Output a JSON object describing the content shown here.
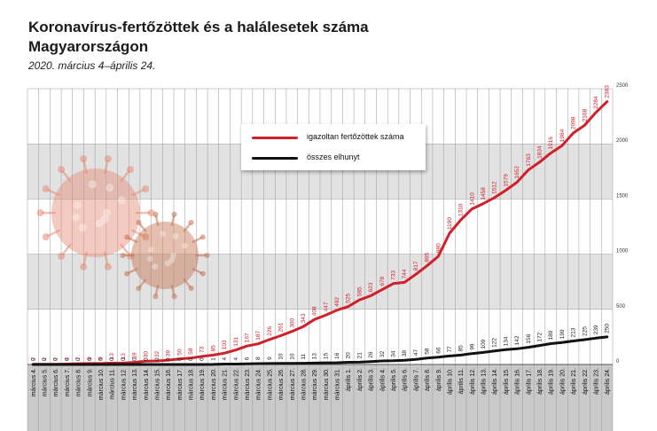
{
  "header": {
    "title_line1": "Koronavírus-fertőzöttek és a halálesetek száma",
    "title_line2": "Magyarországon",
    "subtitle": "2020. március 4–április 24."
  },
  "legend": {
    "infected_label": "igazoltan fertőzöttek száma",
    "deaths_label": "összes elhunyt"
  },
  "chart_data": {
    "type": "line",
    "title": "Koronavírus-fertőzöttek és a halálesetek száma Magyarországon",
    "subtitle": "2020. március 4–április 24.",
    "ylim": [
      0,
      2500
    ],
    "yticks": [
      0,
      500,
      1000,
      1500,
      2000,
      2500
    ],
    "grid": true,
    "legend_position": "top-center",
    "categories": [
      "március 4.",
      "március 5.",
      "március 6.",
      "március 7.",
      "március 8.",
      "március 9.",
      "március 10.",
      "március 11.",
      "március 12.",
      "március 13.",
      "március 14.",
      "március 15.",
      "március 16.",
      "március 17.",
      "március 18.",
      "március 19.",
      "március 20.",
      "március 21.",
      "március 22.",
      "március 23.",
      "március 24.",
      "március 25.",
      "március 26.",
      "március 27.",
      "március 28.",
      "március 29.",
      "március 30.",
      "március 31.",
      "április 1.",
      "április 2.",
      "április 3.",
      "április 4.",
      "április 5.",
      "április 6.",
      "április 7.",
      "április 8.",
      "április 9.",
      "április 10.",
      "április 11.",
      "április 12.",
      "április 13.",
      "április 14.",
      "április 15.",
      "április 16.",
      "április 17.",
      "április 18.",
      "április 19.",
      "április 20.",
      "április 21.",
      "április 22.",
      "április 23.",
      "április 24."
    ],
    "series": [
      {
        "name": "igazoltan fertőzöttek száma",
        "color": "#d0202a",
        "values": [
          2,
          2,
          2,
          4,
          7,
          9,
          9,
          13,
          13,
          19,
          30,
          32,
          39,
          50,
          58,
          73,
          85,
          103,
          131,
          167,
          187,
          226,
          261,
          300,
          343,
          408,
          447,
          492,
          525,
          585,
          623,
          678,
          733,
          744,
          817,
          895,
          980,
          1190,
          1310,
          1410,
          1458,
          1512,
          1579,
          1652,
          1763,
          1834,
          1916,
          1984,
          2098,
          2168,
          2284,
          2383
        ]
      },
      {
        "name": "összes elhunyt",
        "color": "#111111",
        "values": [
          0,
          0,
          0,
          0,
          0,
          0,
          0,
          0,
          0,
          0,
          0,
          0,
          0,
          0,
          0,
          0,
          1,
          4,
          4,
          6,
          8,
          9,
          10,
          10,
          11,
          13,
          15,
          16,
          20,
          21,
          26,
          32,
          34,
          38,
          47,
          58,
          66,
          77,
          85,
          99,
          109,
          122,
          134,
          142,
          156,
          172,
          189,
          199,
          213,
          225,
          239,
          250
        ]
      }
    ],
    "label_rotate": -90
  },
  "colors": {
    "infected": "#d0202a",
    "deaths": "#111111",
    "virus_red": "#e58a74",
    "virus_dark": "#c6704f"
  }
}
